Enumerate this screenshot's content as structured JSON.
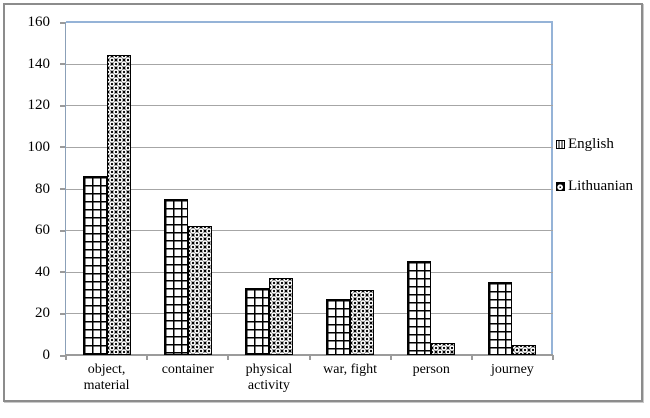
{
  "chart_data": {
    "type": "bar",
    "title": "",
    "xlabel": "",
    "ylabel": "",
    "categories": [
      "object,\nmaterial",
      "container",
      "physical\nactivity",
      "war, fight",
      "person",
      "journey"
    ],
    "series": [
      {
        "name": "English",
        "pattern": "grid",
        "values": [
          86,
          75,
          32,
          27,
          45,
          35
        ]
      },
      {
        "name": "Lithuanian",
        "pattern": "beads",
        "values": [
          144,
          62,
          37,
          31,
          6,
          5
        ]
      }
    ],
    "ylim": [
      0,
      160
    ],
    "ytick_step": 20,
    "ytick_labels": [
      "0",
      "20",
      "40",
      "60",
      "80",
      "100",
      "120",
      "140",
      "160"
    ],
    "grid": true,
    "legend_position": "right",
    "colors": {
      "gridline": "#a6a6a6",
      "plot_border": "#95b3d7",
      "y_axis": "#8ba0b8",
      "x_axis": "#9b9b9b",
      "bar_outline": "#000000",
      "bar_grid_fill": "#ffffff",
      "bar_beads_fill": "#000000",
      "figure_border": "#8c8c8c",
      "text": "#000000"
    }
  }
}
